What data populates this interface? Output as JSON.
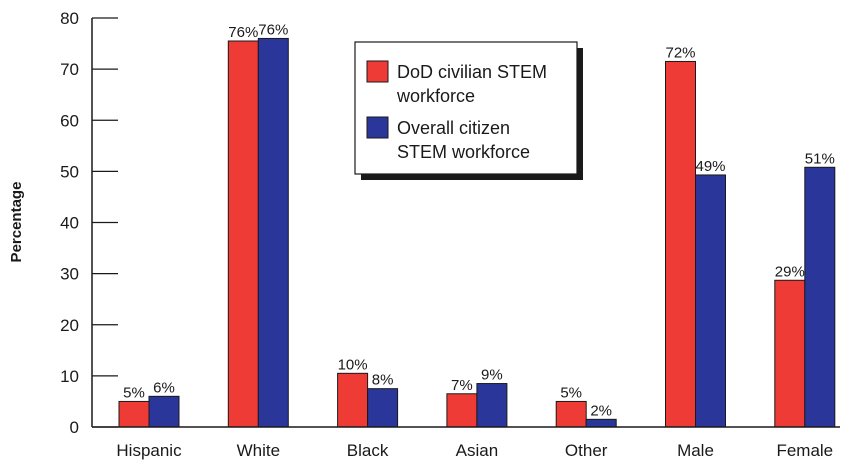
{
  "chart_data": {
    "type": "bar",
    "categories": [
      "Hispanic",
      "White",
      "Black",
      "Asian",
      "Other",
      "Male",
      "Female"
    ],
    "series": [
      {
        "name": "DoD civilian STEM workforce",
        "legend_lines": [
          "DoD civilian STEM",
          "workforce"
        ],
        "values": [
          5,
          75.5,
          10.5,
          6.5,
          5,
          71.5,
          28.7
        ],
        "labels": [
          "5%",
          "76%",
          "10%",
          "7%",
          "5%",
          "72%",
          "29%"
        ],
        "color": "#ef3b36"
      },
      {
        "name": "Overall citizen STEM workforce",
        "legend_lines": [
          "Overall citizen",
          "STEM workforce"
        ],
        "values": [
          6,
          76,
          7.5,
          8.5,
          1.5,
          49.3,
          50.8
        ],
        "labels": [
          "6%",
          "76%",
          "8%",
          "9%",
          "2%",
          "49%",
          "51%"
        ],
        "color": "#2a3699"
      }
    ],
    "ylabel": "Percentage",
    "ylim": [
      0,
      80
    ],
    "yticks": [
      "0",
      "10",
      "20",
      "30",
      "40",
      "50",
      "60",
      "70",
      "80"
    ],
    "grid": false,
    "legend_position": "top-center"
  }
}
